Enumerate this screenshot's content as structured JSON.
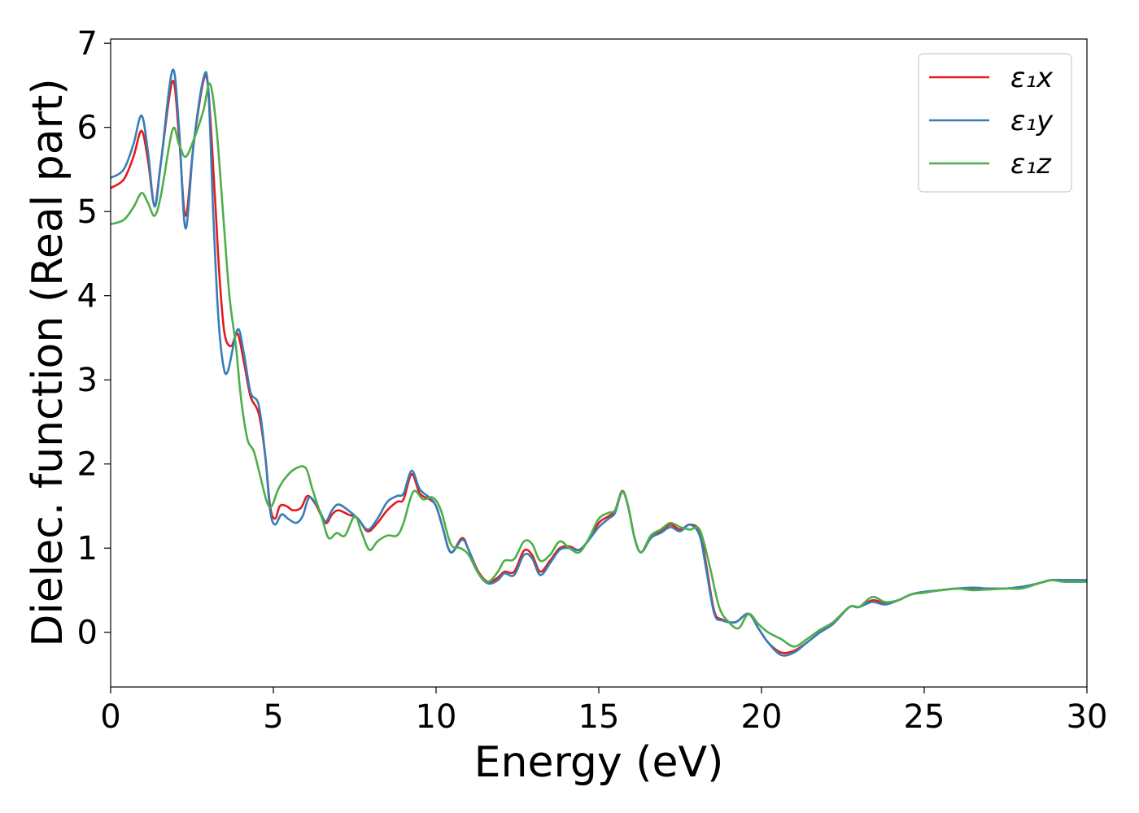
{
  "chart_data": {
    "type": "line",
    "title": "",
    "xlabel": "Energy (eV)",
    "ylabel": "Dielec. function (Real part)",
    "xlim": [
      0,
      30
    ],
    "ylim": [
      -0.65,
      7.05
    ],
    "xticks": [
      0,
      5,
      10,
      15,
      20,
      25,
      30
    ],
    "yticks": [
      0,
      1,
      2,
      3,
      4,
      5,
      6,
      7
    ],
    "grid": false,
    "legend_position": "top-right",
    "series": [
      {
        "name": "ε₁x",
        "color": "#e41a1c",
        "points": [
          [
            0,
            5.28
          ],
          [
            0.4,
            5.38
          ],
          [
            0.7,
            5.65
          ],
          [
            0.95,
            5.96
          ],
          [
            1.15,
            5.6
          ],
          [
            1.35,
            5.08
          ],
          [
            1.55,
            5.6
          ],
          [
            1.9,
            6.55
          ],
          [
            2.1,
            5.9
          ],
          [
            2.3,
            4.95
          ],
          [
            2.55,
            5.8
          ],
          [
            2.85,
            6.55
          ],
          [
            3.0,
            6.45
          ],
          [
            3.2,
            5.2
          ],
          [
            3.35,
            4.2
          ],
          [
            3.5,
            3.55
          ],
          [
            3.7,
            3.4
          ],
          [
            3.9,
            3.55
          ],
          [
            4.1,
            3.2
          ],
          [
            4.3,
            2.8
          ],
          [
            4.55,
            2.6
          ],
          [
            4.75,
            2.1
          ],
          [
            4.9,
            1.5
          ],
          [
            5.05,
            1.35
          ],
          [
            5.2,
            1.5
          ],
          [
            5.4,
            1.5
          ],
          [
            5.6,
            1.45
          ],
          [
            5.85,
            1.48
          ],
          [
            6.05,
            1.62
          ],
          [
            6.3,
            1.52
          ],
          [
            6.6,
            1.3
          ],
          [
            6.8,
            1.4
          ],
          [
            7.0,
            1.45
          ],
          [
            7.3,
            1.4
          ],
          [
            7.6,
            1.35
          ],
          [
            7.9,
            1.2
          ],
          [
            8.2,
            1.3
          ],
          [
            8.5,
            1.45
          ],
          [
            8.8,
            1.55
          ],
          [
            9.0,
            1.58
          ],
          [
            9.25,
            1.88
          ],
          [
            9.5,
            1.65
          ],
          [
            9.8,
            1.58
          ],
          [
            10.0,
            1.5
          ],
          [
            10.2,
            1.25
          ],
          [
            10.45,
            0.95
          ],
          [
            10.8,
            1.12
          ],
          [
            11.0,
            0.98
          ],
          [
            11.3,
            0.72
          ],
          [
            11.6,
            0.6
          ],
          [
            11.9,
            0.65
          ],
          [
            12.1,
            0.72
          ],
          [
            12.4,
            0.72
          ],
          [
            12.7,
            0.97
          ],
          [
            12.95,
            0.92
          ],
          [
            13.2,
            0.72
          ],
          [
            13.5,
            0.85
          ],
          [
            13.8,
            1.0
          ],
          [
            14.1,
            1.02
          ],
          [
            14.4,
            0.98
          ],
          [
            14.7,
            1.1
          ],
          [
            15.0,
            1.3
          ],
          [
            15.3,
            1.38
          ],
          [
            15.5,
            1.45
          ],
          [
            15.72,
            1.68
          ],
          [
            15.9,
            1.5
          ],
          [
            16.1,
            1.12
          ],
          [
            16.3,
            0.95
          ],
          [
            16.6,
            1.12
          ],
          [
            16.9,
            1.2
          ],
          [
            17.2,
            1.28
          ],
          [
            17.5,
            1.22
          ],
          [
            17.8,
            1.28
          ],
          [
            18.1,
            1.2
          ],
          [
            18.3,
            0.8
          ],
          [
            18.55,
            0.25
          ],
          [
            18.8,
            0.15
          ],
          [
            19.2,
            0.12
          ],
          [
            19.6,
            0.22
          ],
          [
            19.9,
            0.05
          ],
          [
            20.2,
            -0.12
          ],
          [
            20.6,
            -0.24
          ],
          [
            21.0,
            -0.22
          ],
          [
            21.4,
            -0.12
          ],
          [
            21.8,
            0.0
          ],
          [
            22.2,
            0.1
          ],
          [
            22.7,
            0.3
          ],
          [
            23.0,
            0.3
          ],
          [
            23.4,
            0.38
          ],
          [
            23.8,
            0.35
          ],
          [
            24.2,
            0.38
          ],
          [
            24.6,
            0.45
          ],
          [
            25.0,
            0.48
          ],
          [
            25.5,
            0.5
          ],
          [
            26.0,
            0.52
          ],
          [
            26.5,
            0.52
          ],
          [
            27.0,
            0.52
          ],
          [
            27.5,
            0.52
          ],
          [
            28.0,
            0.54
          ],
          [
            28.5,
            0.58
          ],
          [
            28.9,
            0.62
          ],
          [
            29.3,
            0.62
          ],
          [
            30.0,
            0.62
          ]
        ]
      },
      {
        "name": "ε₁y",
        "color": "#377eb8",
        "points": [
          [
            0,
            5.4
          ],
          [
            0.4,
            5.5
          ],
          [
            0.7,
            5.8
          ],
          [
            0.95,
            6.14
          ],
          [
            1.15,
            5.7
          ],
          [
            1.35,
            5.06
          ],
          [
            1.55,
            5.6
          ],
          [
            1.9,
            6.68
          ],
          [
            2.1,
            6.0
          ],
          [
            2.3,
            4.8
          ],
          [
            2.55,
            5.8
          ],
          [
            2.85,
            6.58
          ],
          [
            3.0,
            6.45
          ],
          [
            3.15,
            5.0
          ],
          [
            3.3,
            3.8
          ],
          [
            3.45,
            3.2
          ],
          [
            3.6,
            3.1
          ],
          [
            3.9,
            3.6
          ],
          [
            4.1,
            3.3
          ],
          [
            4.3,
            2.85
          ],
          [
            4.55,
            2.7
          ],
          [
            4.75,
            2.1
          ],
          [
            4.9,
            1.45
          ],
          [
            5.05,
            1.28
          ],
          [
            5.25,
            1.4
          ],
          [
            5.45,
            1.35
          ],
          [
            5.7,
            1.3
          ],
          [
            5.9,
            1.38
          ],
          [
            6.1,
            1.6
          ],
          [
            6.35,
            1.5
          ],
          [
            6.6,
            1.32
          ],
          [
            6.8,
            1.45
          ],
          [
            7.0,
            1.52
          ],
          [
            7.3,
            1.45
          ],
          [
            7.6,
            1.35
          ],
          [
            7.9,
            1.22
          ],
          [
            8.2,
            1.35
          ],
          [
            8.5,
            1.55
          ],
          [
            8.8,
            1.62
          ],
          [
            9.0,
            1.65
          ],
          [
            9.25,
            1.92
          ],
          [
            9.5,
            1.7
          ],
          [
            9.8,
            1.6
          ],
          [
            10.0,
            1.5
          ],
          [
            10.2,
            1.25
          ],
          [
            10.45,
            0.95
          ],
          [
            10.8,
            1.1
          ],
          [
            11.0,
            0.98
          ],
          [
            11.3,
            0.7
          ],
          [
            11.6,
            0.58
          ],
          [
            11.9,
            0.62
          ],
          [
            12.1,
            0.7
          ],
          [
            12.4,
            0.68
          ],
          [
            12.7,
            0.92
          ],
          [
            12.95,
            0.88
          ],
          [
            13.2,
            0.68
          ],
          [
            13.5,
            0.82
          ],
          [
            13.8,
            0.98
          ],
          [
            14.1,
            1.0
          ],
          [
            14.4,
            0.98
          ],
          [
            14.7,
            1.1
          ],
          [
            15.0,
            1.25
          ],
          [
            15.3,
            1.35
          ],
          [
            15.5,
            1.42
          ],
          [
            15.72,
            1.67
          ],
          [
            15.9,
            1.5
          ],
          [
            16.1,
            1.12
          ],
          [
            16.3,
            0.95
          ],
          [
            16.6,
            1.12
          ],
          [
            16.9,
            1.18
          ],
          [
            17.2,
            1.25
          ],
          [
            17.5,
            1.2
          ],
          [
            17.8,
            1.28
          ],
          [
            18.1,
            1.15
          ],
          [
            18.3,
            0.75
          ],
          [
            18.55,
            0.22
          ],
          [
            18.8,
            0.14
          ],
          [
            19.2,
            0.12
          ],
          [
            19.6,
            0.22
          ],
          [
            19.9,
            0.05
          ],
          [
            20.2,
            -0.12
          ],
          [
            20.6,
            -0.27
          ],
          [
            21.0,
            -0.24
          ],
          [
            21.4,
            -0.12
          ],
          [
            21.8,
            0.0
          ],
          [
            22.2,
            0.1
          ],
          [
            22.7,
            0.3
          ],
          [
            23.0,
            0.3
          ],
          [
            23.4,
            0.36
          ],
          [
            23.8,
            0.33
          ],
          [
            24.2,
            0.38
          ],
          [
            24.6,
            0.45
          ],
          [
            25.0,
            0.48
          ],
          [
            25.5,
            0.5
          ],
          [
            26.0,
            0.52
          ],
          [
            26.5,
            0.53
          ],
          [
            27.0,
            0.52
          ],
          [
            27.5,
            0.52
          ],
          [
            28.0,
            0.54
          ],
          [
            28.5,
            0.58
          ],
          [
            28.9,
            0.62
          ],
          [
            29.3,
            0.62
          ],
          [
            30.0,
            0.62
          ]
        ]
      },
      {
        "name": "ε₁z",
        "color": "#4daf4a",
        "points": [
          [
            0,
            4.85
          ],
          [
            0.4,
            4.9
          ],
          [
            0.7,
            5.05
          ],
          [
            0.95,
            5.22
          ],
          [
            1.15,
            5.1
          ],
          [
            1.35,
            4.95
          ],
          [
            1.55,
            5.2
          ],
          [
            1.9,
            5.97
          ],
          [
            2.1,
            5.8
          ],
          [
            2.3,
            5.65
          ],
          [
            2.55,
            5.85
          ],
          [
            2.85,
            6.2
          ],
          [
            3.05,
            6.52
          ],
          [
            3.25,
            6.0
          ],
          [
            3.45,
            5.0
          ],
          [
            3.65,
            4.0
          ],
          [
            3.85,
            3.4
          ],
          [
            4.0,
            2.8
          ],
          [
            4.2,
            2.3
          ],
          [
            4.4,
            2.15
          ],
          [
            4.6,
            1.85
          ],
          [
            4.8,
            1.55
          ],
          [
            4.95,
            1.5
          ],
          [
            5.15,
            1.7
          ],
          [
            5.4,
            1.85
          ],
          [
            5.7,
            1.95
          ],
          [
            6.0,
            1.95
          ],
          [
            6.2,
            1.7
          ],
          [
            6.5,
            1.35
          ],
          [
            6.7,
            1.12
          ],
          [
            6.95,
            1.18
          ],
          [
            7.2,
            1.15
          ],
          [
            7.5,
            1.38
          ],
          [
            7.7,
            1.2
          ],
          [
            7.95,
            0.98
          ],
          [
            8.2,
            1.08
          ],
          [
            8.5,
            1.15
          ],
          [
            8.8,
            1.15
          ],
          [
            9.0,
            1.3
          ],
          [
            9.3,
            1.67
          ],
          [
            9.6,
            1.58
          ],
          [
            9.9,
            1.6
          ],
          [
            10.15,
            1.45
          ],
          [
            10.45,
            1.05
          ],
          [
            10.75,
            1.0
          ],
          [
            11.0,
            0.92
          ],
          [
            11.3,
            0.7
          ],
          [
            11.6,
            0.6
          ],
          [
            11.9,
            0.72
          ],
          [
            12.1,
            0.85
          ],
          [
            12.4,
            0.87
          ],
          [
            12.7,
            1.08
          ],
          [
            12.95,
            1.05
          ],
          [
            13.2,
            0.85
          ],
          [
            13.5,
            0.92
          ],
          [
            13.8,
            1.08
          ],
          [
            14.1,
            1.0
          ],
          [
            14.4,
            0.95
          ],
          [
            14.7,
            1.12
          ],
          [
            15.0,
            1.35
          ],
          [
            15.3,
            1.42
          ],
          [
            15.5,
            1.45
          ],
          [
            15.72,
            1.67
          ],
          [
            15.9,
            1.5
          ],
          [
            16.1,
            1.12
          ],
          [
            16.3,
            0.95
          ],
          [
            16.6,
            1.15
          ],
          [
            16.9,
            1.22
          ],
          [
            17.2,
            1.3
          ],
          [
            17.5,
            1.25
          ],
          [
            17.8,
            1.22
          ],
          [
            18.1,
            1.22
          ],
          [
            18.4,
            0.8
          ],
          [
            18.7,
            0.3
          ],
          [
            19.0,
            0.12
          ],
          [
            19.3,
            0.05
          ],
          [
            19.6,
            0.22
          ],
          [
            19.9,
            0.1
          ],
          [
            20.2,
            0.0
          ],
          [
            20.6,
            -0.08
          ],
          [
            21.0,
            -0.17
          ],
          [
            21.4,
            -0.08
          ],
          [
            21.8,
            0.03
          ],
          [
            22.2,
            0.12
          ],
          [
            22.7,
            0.3
          ],
          [
            23.0,
            0.3
          ],
          [
            23.4,
            0.42
          ],
          [
            23.8,
            0.36
          ],
          [
            24.2,
            0.38
          ],
          [
            24.6,
            0.45
          ],
          [
            25.0,
            0.47
          ],
          [
            25.5,
            0.5
          ],
          [
            26.0,
            0.52
          ],
          [
            26.5,
            0.5
          ],
          [
            27.0,
            0.51
          ],
          [
            27.5,
            0.52
          ],
          [
            28.0,
            0.52
          ],
          [
            28.5,
            0.58
          ],
          [
            28.9,
            0.62
          ],
          [
            29.3,
            0.6
          ],
          [
            30.0,
            0.6
          ]
        ]
      }
    ]
  }
}
